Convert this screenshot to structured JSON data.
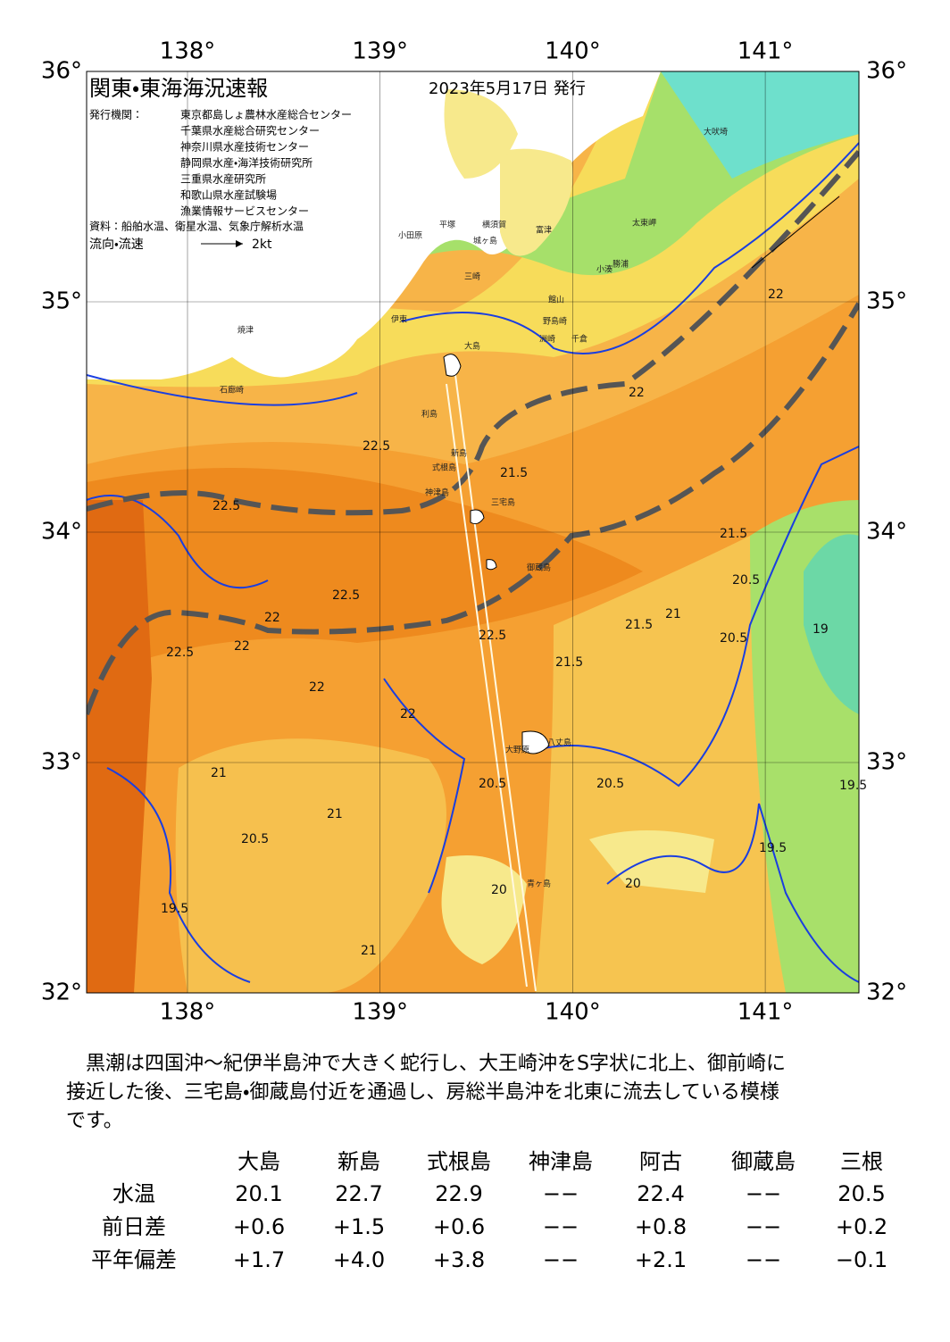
{
  "header": {
    "title": "関東・東海海況速報",
    "date": "2023年5月17日 発行",
    "issuer_label": "発行機関：",
    "issuers": [
      "東京都島しょ農林水産総合センター",
      "千葉県水産総合研究センター",
      "神奈川県水産技術センター",
      "静岡県水産・海洋技術研究所",
      "三重県水産研究所",
      "和歌山県水産試験場",
      "漁業情報サービスセンター"
    ],
    "source": "資料：船舶水温、衛星水温、気象庁解析水温",
    "legend_label": "流向・流速",
    "legend_speed": "2kt"
  },
  "map": {
    "lon_ticks": [
      {
        "value": 138,
        "label": "138°"
      },
      {
        "value": 139,
        "label": "139°"
      },
      {
        "value": 140,
        "label": "140°"
      },
      {
        "value": 141,
        "label": "141°"
      }
    ],
    "lat_ticks": [
      {
        "value": 36,
        "label": "36°"
      },
      {
        "value": 35,
        "label": "35°"
      },
      {
        "value": 34,
        "label": "34°"
      },
      {
        "value": 33,
        "label": "33°"
      },
      {
        "value": 32,
        "label": "32°"
      }
    ],
    "place_names": [
      "大島",
      "利島",
      "新島",
      "式根島",
      "神津島",
      "三宅島",
      "御蔵島",
      "八丈島",
      "青ヶ島",
      "大野原",
      "石廊崎",
      "焼津",
      "大吠埼",
      "太東岬",
      "千倉",
      "洲崎",
      "野島崎",
      "小湊",
      "勝浦",
      "館山",
      "平塚",
      "横須賀",
      "三崎",
      "城ヶ島",
      "富津",
      "小田原",
      "伊東"
    ],
    "contour_labels": [
      "22.5",
      "22.5",
      "22.5",
      "22.5",
      "22",
      "22",
      "22",
      "22",
      "22",
      "21.5",
      "21.5",
      "21.5",
      "21.5",
      "21",
      "21",
      "21",
      "20.5",
      "20.5",
      "20.5",
      "20.5",
      "20",
      "20",
      "19.5",
      "19.5",
      "19",
      "19.5",
      "22.5",
      "22",
      "21",
      "20.5"
    ]
  },
  "summary": {
    "lines": [
      "黒潮は四国沖～紀伊半島沖で大きく蛇行し、大王崎沖をS字状に北上、御前崎に",
      "接近した後、三宅島・御蔵島付近を通過し、房総半島沖を北東に流去している模様",
      "です。"
    ]
  },
  "table": {
    "columns": [
      "大島",
      "新島",
      "式根島",
      "神津島",
      "阿古",
      "御蔵島",
      "三根"
    ],
    "rows": [
      {
        "label": "水温",
        "cells": [
          "20.1",
          "22.7",
          "22.9",
          "−−",
          "22.4",
          "−−",
          "20.5"
        ]
      },
      {
        "label": "前日差",
        "cells": [
          "+0.6",
          "+1.5",
          "+0.6",
          "−−",
          "+0.8",
          "−−",
          "+0.2"
        ]
      },
      {
        "label": "平年偏差",
        "cells": [
          "+1.7",
          "+4.0",
          "+3.8",
          "−−",
          "+2.1",
          "−−",
          "−0.1"
        ]
      }
    ]
  }
}
